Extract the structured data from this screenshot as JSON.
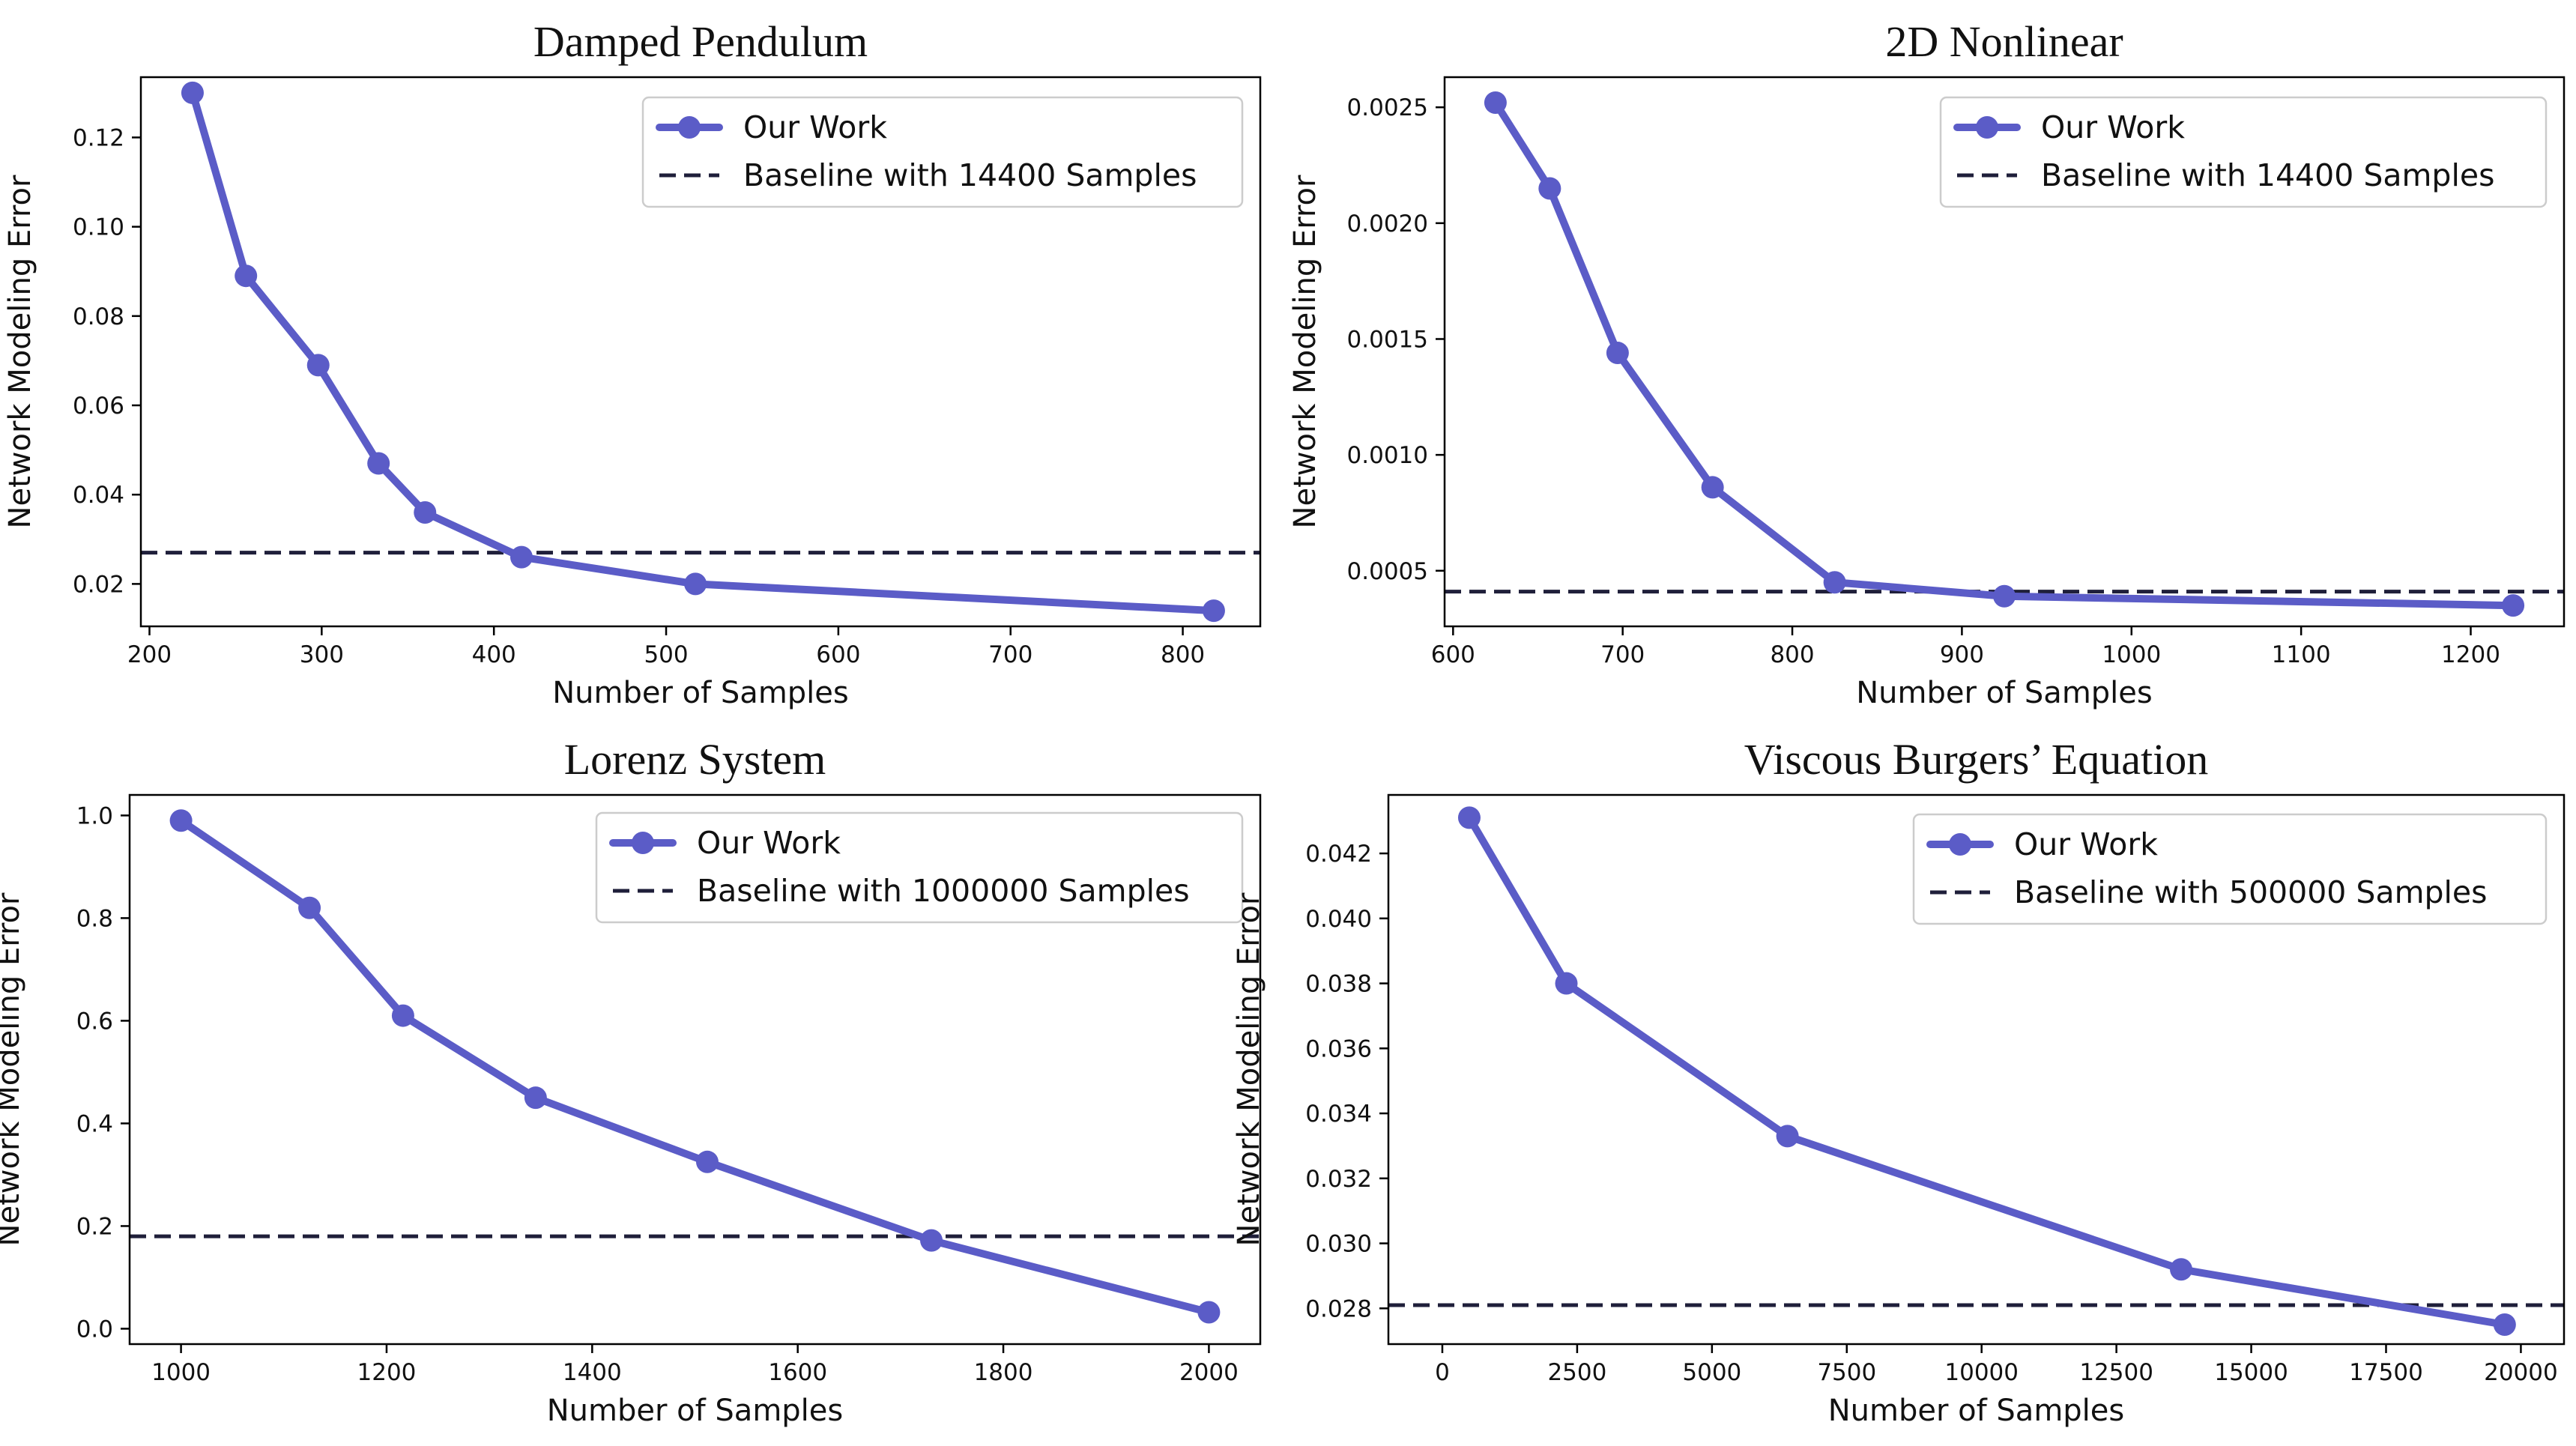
{
  "chart_data": [
    {
      "type": "line",
      "title": "Damped Pendulum",
      "xlabel": "Number of Samples",
      "ylabel": "Network Modeling Error",
      "xlim": [
        195,
        845
      ],
      "ylim": [
        0.0105,
        0.1335
      ],
      "xticks": [
        200,
        300,
        400,
        500,
        600,
        700,
        800
      ],
      "yticks": [
        0.02,
        0.04,
        0.06,
        0.08,
        0.1,
        0.12
      ],
      "ytick_labels": [
        "0.02",
        "0.04",
        "0.06",
        "0.08",
        "0.10",
        "0.12"
      ],
      "series": [
        {
          "name": "Our Work",
          "x": [
            225,
            256,
            298,
            333,
            360,
            416,
            517,
            818
          ],
          "y": [
            0.13,
            0.089,
            0.069,
            0.047,
            0.036,
            0.026,
            0.02,
            0.014
          ]
        }
      ],
      "baseline": {
        "name": "Baseline with 14400 Samples",
        "y": 0.027
      },
      "legend_position": "top-right",
      "colors": {
        "series": "#5b5cc7",
        "baseline": "#1f1f3a"
      }
    },
    {
      "type": "line",
      "title": "2D Nonlinear",
      "xlabel": "Number of Samples",
      "ylabel": "Network Modeling Error",
      "xlim": [
        595,
        1255
      ],
      "ylim": [
        0.00026,
        0.00263
      ],
      "xticks": [
        600,
        700,
        800,
        900,
        1000,
        1100,
        1200
      ],
      "yticks": [
        0.0005,
        0.001,
        0.0015,
        0.002,
        0.0025
      ],
      "ytick_labels": [
        "0.0005",
        "0.0010",
        "0.0015",
        "0.0020",
        "0.0025"
      ],
      "series": [
        {
          "name": "Our Work",
          "x": [
            625,
            657,
            697,
            753,
            825,
            925,
            1225
          ],
          "y": [
            0.00252,
            0.00215,
            0.00144,
            0.00086,
            0.00045,
            0.00039,
            0.00035
          ]
        }
      ],
      "baseline": {
        "name": "Baseline with 14400 Samples",
        "y": 0.00041
      },
      "legend_position": "top-right",
      "colors": {
        "series": "#5b5cc7",
        "baseline": "#1f1f3a"
      }
    },
    {
      "type": "line",
      "title": "Lorenz System",
      "xlabel": "Number of Samples",
      "ylabel": "Network Modeling Error",
      "xlim": [
        950,
        2050
      ],
      "ylim": [
        -0.03,
        1.04
      ],
      "xticks": [
        1000,
        1200,
        1400,
        1600,
        1800,
        2000
      ],
      "yticks": [
        0.0,
        0.2,
        0.4,
        0.6,
        0.8,
        1.0
      ],
      "ytick_labels": [
        "0.0",
        "0.2",
        "0.4",
        "0.6",
        "0.8",
        "1.0"
      ],
      "series": [
        {
          "name": "Our Work",
          "x": [
            1000,
            1125,
            1216,
            1345,
            1512,
            1730,
            2000
          ],
          "y": [
            0.99,
            0.82,
            0.61,
            0.45,
            0.325,
            0.172,
            0.032
          ]
        }
      ],
      "baseline": {
        "name": "Baseline with 1000000 Samples",
        "y": 0.18
      },
      "legend_position": "top-right",
      "colors": {
        "series": "#5b5cc7",
        "baseline": "#1f1f3a"
      }
    },
    {
      "type": "line",
      "title": "Viscous Burgers’ Equation",
      "xlabel": "Number of Samples",
      "ylabel": "Network Modeling Error",
      "xlim": [
        -1000,
        20800
      ],
      "ylim": [
        0.0269,
        0.0438
      ],
      "xticks": [
        0,
        2500,
        5000,
        7500,
        10000,
        12500,
        15000,
        17500,
        20000
      ],
      "yticks": [
        0.028,
        0.03,
        0.032,
        0.034,
        0.036,
        0.038,
        0.04,
        0.042
      ],
      "ytick_labels": [
        "0.028",
        "0.030",
        "0.032",
        "0.034",
        "0.036",
        "0.038",
        "0.040",
        "0.042"
      ],
      "series": [
        {
          "name": "Our Work",
          "x": [
            500,
            2300,
            6400,
            13700,
            19700
          ],
          "y": [
            0.0431,
            0.038,
            0.0333,
            0.0292,
            0.0275
          ]
        }
      ],
      "baseline": {
        "name": "Baseline with 500000 Samples",
        "y": 0.0281
      },
      "legend_position": "top-right",
      "colors": {
        "series": "#5b5cc7",
        "baseline": "#1f1f3a"
      }
    }
  ]
}
